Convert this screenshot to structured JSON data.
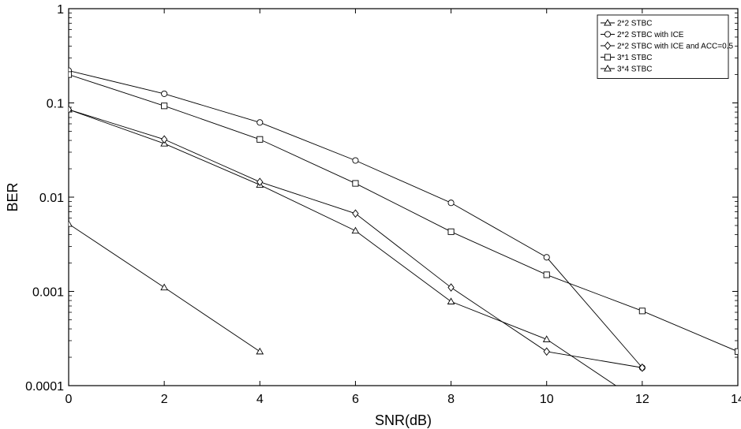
{
  "chart_data": {
    "type": "line",
    "title": "",
    "xlabel": "SNR(dB)",
    "ylabel": "BER",
    "xlim": [
      0,
      14
    ],
    "ylim": [
      0.0001,
      1
    ],
    "yscale": "log",
    "grid": false,
    "legend_position": "top-right",
    "x_ticks": [
      0,
      2,
      4,
      6,
      8,
      10,
      12,
      14
    ],
    "x_tick_labels": [
      "0",
      "2",
      "4",
      "6",
      "8",
      "10",
      "12",
      "14"
    ],
    "y_ticks": [
      0.0001,
      0.001,
      0.01,
      0.1,
      1
    ],
    "y_tick_labels": [
      "0.0001",
      "0.001",
      "0.01",
      "0.1",
      "1"
    ],
    "series": [
      {
        "name": "2*2 STBC",
        "marker": "triangle",
        "x": [
          0,
          2,
          4,
          6,
          8,
          10,
          12
        ],
        "y": [
          0.085,
          0.037,
          0.0135,
          0.0044,
          0.00078,
          0.00031,
          6.5e-05
        ]
      },
      {
        "name": "2*2 STBC with ICE",
        "marker": "circle",
        "x": [
          0,
          2,
          4,
          6,
          8,
          10,
          12
        ],
        "y": [
          0.22,
          0.125,
          0.062,
          0.0245,
          0.0087,
          0.0023,
          0.000155
        ]
      },
      {
        "name": "2*2 STBC with ICE and ACC=0.5",
        "marker": "diamond",
        "x": [
          0,
          2,
          4,
          6,
          8,
          10,
          12
        ],
        "y": [
          0.085,
          0.041,
          0.0145,
          0.0067,
          0.0011,
          0.00023,
          0.000155
        ]
      },
      {
        "name": "3*1 STBC",
        "marker": "square",
        "x": [
          0,
          2,
          4,
          6,
          8,
          10,
          12,
          14
        ],
        "y": [
          0.2,
          0.093,
          0.041,
          0.014,
          0.0043,
          0.0015,
          0.00062,
          0.00023
        ]
      },
      {
        "name": "3*4 STBC",
        "marker": "triangle",
        "x": [
          0,
          2,
          4
        ],
        "y": [
          0.0052,
          0.0011,
          0.00023
        ]
      }
    ]
  }
}
